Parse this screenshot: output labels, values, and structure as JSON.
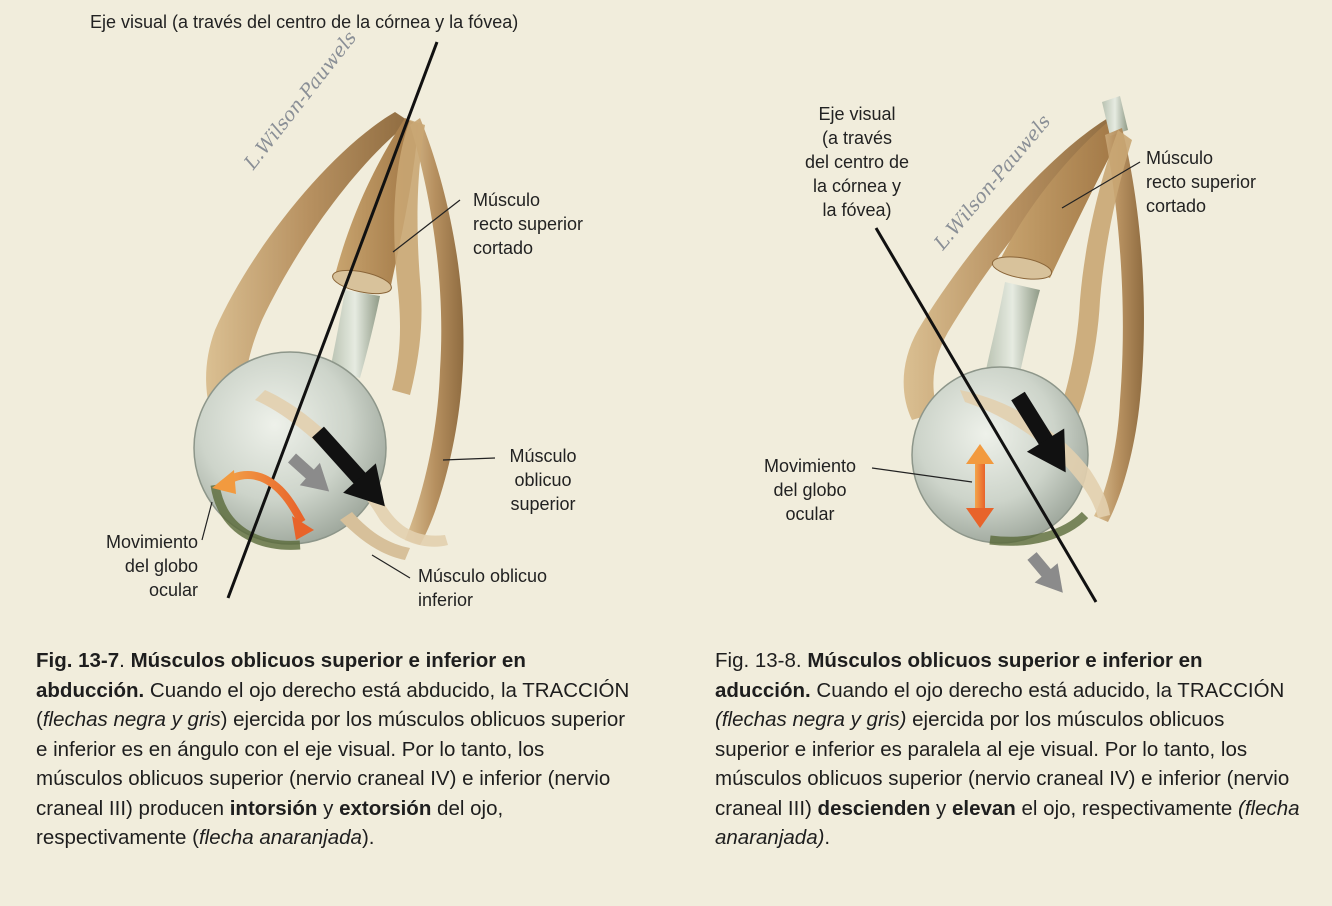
{
  "figures": [
    {
      "id": "fig-13-7",
      "labels": {
        "visual_axis": "Eje visual (a través del centro de la córnea y la fóvea)",
        "superior_rectus": [
          "Músculo",
          "recto superior",
          "cortado"
        ],
        "superior_oblique": [
          "Músculo",
          "oblicuo",
          "superior"
        ],
        "inferior_oblique": [
          "Músculo oblicuo",
          "inferior"
        ],
        "eye_movement": [
          "Movimiento",
          "del globo",
          "ocular"
        ]
      },
      "signature": "L.Wilson-Pauwels",
      "caption": {
        "fig_number": "Fig. 13-7",
        "title": "Músculos oblicuos superior e inferior en abducción.",
        "t1": " Cuando el ojo derecho está abducido, la TRACCIÓN (",
        "i1": "flechas negra y gris",
        "t2": ") ejercida por los músculos oblicuos superior e inferior es en ángulo con el eje visual. Por lo tanto, los músculos oblicuos superior (nervio craneal IV) e inferior (nervio craneal III) producen ",
        "b1": "intorsión",
        "t3": " y ",
        "b2": "extorsión",
        "t4": " del ojo, respectivamente (",
        "i2": "flecha anaranjada",
        "t5": ")."
      }
    },
    {
      "id": "fig-13-8",
      "labels": {
        "visual_axis": [
          "Eje visual",
          "(a través",
          "del centro de",
          "la córnea y",
          "la fóvea)"
        ],
        "superior_rectus": [
          "Músculo",
          "recto superior",
          "cortado"
        ],
        "eye_movement": [
          "Movimiento",
          "del globo",
          "ocular"
        ]
      },
      "signature": "L.Wilson-Pauwels",
      "caption": {
        "fig_number": "Fig. 13-8.",
        "title": "Músculos oblicuos superior e inferior en aducción.",
        "t1": " Cuando el ojo derecho está aducido, la TRACCIÓN ",
        "i1": "(flechas negra y gris)",
        "t2": " ejercida por los músculos oblicuos superior e inferior es paralela al eje visual. Por lo tanto, los músculos oblicuos superior (nervio craneal IV) e inferior (nervio craneal III) ",
        "b1": "descienden",
        "t3": " y ",
        "b2": "elevan",
        "t4": " el ojo, respectivamente ",
        "i2": "(flecha anaranjada)",
        "t5": "."
      }
    }
  ],
  "colors": {
    "background": "#f1eddc",
    "muscle": "#b89262",
    "muscle_dark": "#8a6538",
    "eyeball": "#cfd6cc",
    "arrow_black": "#111111",
    "arrow_gray": "#8b8b8b",
    "arrow_orange": "#ec7b2e"
  }
}
